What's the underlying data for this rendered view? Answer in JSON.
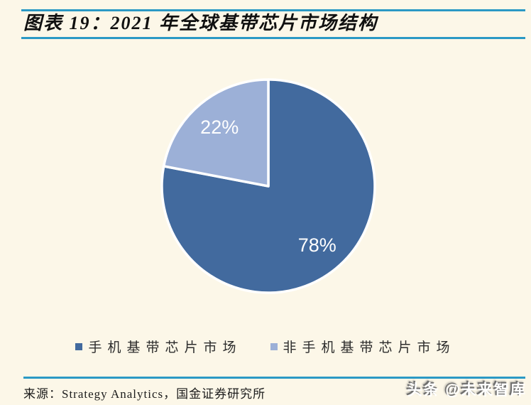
{
  "theme": {
    "background": "#fcf7e8",
    "rule_color": "#2b99c5",
    "title_color": "#101010"
  },
  "header": {
    "title": "图表 19：2021 年全球基带芯片市场结构"
  },
  "chart_data": {
    "type": "pie",
    "title": "2021 年全球基带芯片市场结构",
    "start_angle": "top",
    "direction": "clockwise",
    "label_color": "#ffffff",
    "legend_position": "bottom-center",
    "slices": [
      {
        "label": "手机基带芯片市场",
        "value": 78,
        "display": "78%",
        "color": "#426a9e"
      },
      {
        "label": "非手机基带芯片市场",
        "value": 22,
        "display": "22%",
        "color": "#9cb0d7"
      }
    ]
  },
  "footer": {
    "source": "来源：Strategy Analytics，国金证券研究所"
  },
  "watermark": {
    "text": "头条 @未来智库"
  }
}
